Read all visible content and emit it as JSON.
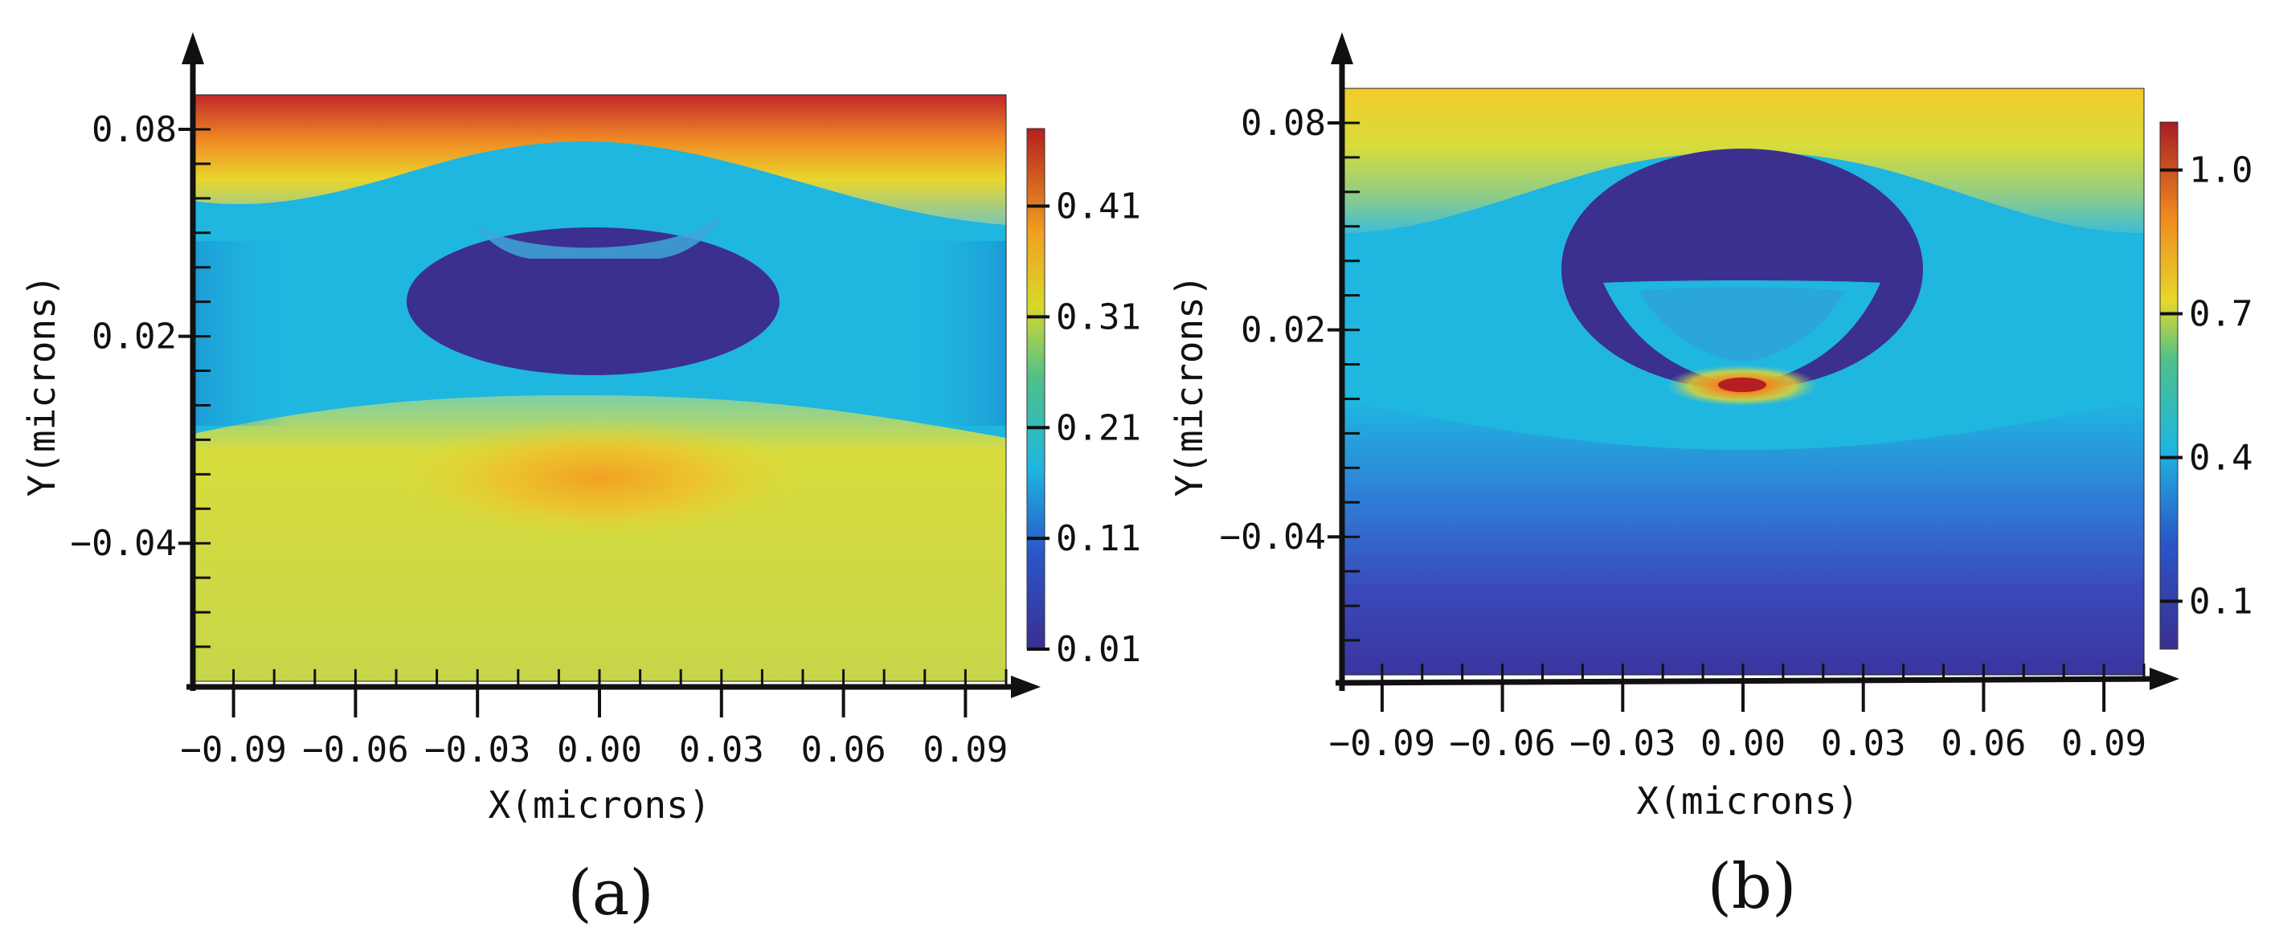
{
  "chart_data": [
    {
      "type": "heatmap",
      "panel": "(a)",
      "xlabel": "X(microns)",
      "ylabel": "Y(microns)",
      "xticks": [
        "-0.09",
        "-0.06",
        "-0.03",
        "0.00",
        "0.03",
        "0.06",
        "0.09"
      ],
      "yticks": [
        "0.08",
        "0.02",
        "-0.04"
      ],
      "xlim": [
        -0.1,
        0.1
      ],
      "ylim": [
        -0.08,
        0.09
      ],
      "colorbar": {
        "ticks": [
          "0.41",
          "0.31",
          "0.21",
          "0.11",
          "0.01"
        ],
        "range": [
          0.01,
          0.48
        ]
      },
      "colors": {
        "low": "#3b2f8f",
        "mid": "#1fb6e0",
        "high": "#b51f1f"
      }
    },
    {
      "type": "heatmap",
      "panel": "(b)",
      "xlabel": "X(microns)",
      "ylabel": "Y(microns)",
      "xticks": [
        "-0.09",
        "-0.06",
        "-0.03",
        "0.00",
        "0.03",
        "0.06",
        "0.09"
      ],
      "yticks": [
        "0.08",
        "0.02",
        "-0.04"
      ],
      "xlim": [
        -0.1,
        0.1
      ],
      "ylim": [
        -0.08,
        0.09
      ],
      "colorbar": {
        "ticks": [
          "1.0",
          "0.7",
          "0.4",
          "0.1"
        ],
        "range": [
          0.0,
          1.1
        ]
      },
      "colors": {
        "low": "#3b2f8f",
        "mid": "#1fb6e0",
        "high": "#b51f1f"
      }
    }
  ]
}
